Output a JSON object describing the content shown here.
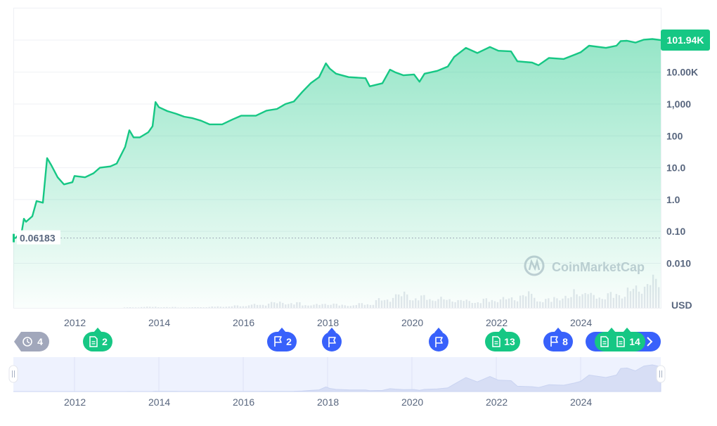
{
  "chart_data": {
    "type": "area",
    "scale": "log",
    "currency_label": "USD",
    "last_price_label": "101.94K",
    "start_price_label": "0.06183",
    "watermark": "CoinMarketCap",
    "y_ticks": [
      "101.94K",
      "10.00K",
      "1,000",
      "100",
      "10.0",
      "1.0",
      "0.10",
      "0.010"
    ],
    "x_ticks": [
      "2012",
      "2014",
      "2016",
      "2018",
      "2020",
      "2022",
      "2024"
    ],
    "nav_x_ticks": [
      "2012",
      "2014",
      "2016",
      "2018",
      "2020",
      "2022",
      "2024"
    ],
    "xlim": [
      2010.55,
      2025.9
    ],
    "ylim": [
      0.001,
      300000
    ],
    "series": [
      {
        "x": [
          2010.55,
          2010.6,
          2010.75,
          2010.8,
          2010.85,
          2011.0,
          2011.1,
          2011.25,
          2011.3,
          2011.35,
          2011.45,
          2011.6,
          2011.75,
          2011.95,
          2012.0,
          2012.25,
          2012.45,
          2012.6,
          2012.85,
          2013.0,
          2013.2,
          2013.3,
          2013.4,
          2013.55,
          2013.75,
          2013.85,
          2013.92,
          2014.0,
          2014.2,
          2014.4,
          2014.6,
          2014.8,
          2015.0,
          2015.2,
          2015.5,
          2015.75,
          2015.95,
          2016.3,
          2016.55,
          2016.8,
          2017.0,
          2017.2,
          2017.4,
          2017.6,
          2017.8,
          2017.96,
          2018.05,
          2018.2,
          2018.5,
          2018.9,
          2019.0,
          2019.3,
          2019.48,
          2019.6,
          2019.8,
          2020.05,
          2020.18,
          2020.3,
          2020.6,
          2020.85,
          2021.0,
          2021.28,
          2021.55,
          2021.85,
          2022.05,
          2022.35,
          2022.5,
          2022.85,
          2023.0,
          2023.25,
          2023.6,
          2023.85,
          2024.0,
          2024.2,
          2024.6,
          2024.85,
          2024.95,
          2025.1,
          2025.3,
          2025.5,
          2025.7,
          2025.9
        ],
        "y": [
          0.0618,
          0.0618,
          0.1,
          0.25,
          0.2,
          0.3,
          0.9,
          0.8,
          4,
          20,
          12,
          5,
          3,
          3.5,
          5.5,
          5,
          6.7,
          10,
          11,
          13.5,
          45,
          150,
          90,
          90,
          130,
          200,
          1150,
          800,
          600,
          500,
          400,
          360,
          300,
          230,
          230,
          330,
          430,
          430,
          620,
          700,
          1000,
          1200,
          2400,
          4500,
          7000,
          19000,
          13000,
          9000,
          7000,
          6500,
          3600,
          4500,
          12000,
          10000,
          8000,
          8500,
          5000,
          9000,
          11000,
          15000,
          30000,
          58000,
          40000,
          62000,
          47000,
          45000,
          22000,
          20000,
          16500,
          28000,
          26000,
          35000,
          42000,
          68000,
          58000,
          68000,
          95000,
          97000,
          85000,
          105000,
          110000,
          101940
        ]
      }
    ],
    "volume_level": [
      0,
      0,
      0,
      0,
      0,
      0,
      0.02,
      0.04,
      0.03,
      0.02,
      0.03,
      0.05,
      0.08,
      0.12,
      0.2,
      0.18,
      0.12,
      0.15,
      0.1,
      0.15,
      0.3,
      0.5,
      0.4,
      0.35,
      0.3,
      0.25,
      0.3,
      0.35,
      0.5,
      0.3,
      0.4,
      0.6,
      0.45,
      0.5,
      0.7,
      1.0
    ],
    "events": [
      {
        "type": "history",
        "label": "4",
        "year": null
      },
      {
        "type": "doc",
        "label": "2",
        "year": 2012.5
      },
      {
        "type": "flag",
        "label": "2",
        "year": 2016.9
      },
      {
        "type": "flag",
        "label": "",
        "year": 2018.1
      },
      {
        "type": "flag",
        "label": "",
        "year": 2020.6
      },
      {
        "type": "doc",
        "label": "13",
        "year": 2022.1
      },
      {
        "type": "flag",
        "label": "8",
        "year": 2023.3
      },
      {
        "type": "doc",
        "label": "14",
        "year": 2025.1
      }
    ],
    "colors": {
      "line": "#16c784",
      "flag_badge": "#3861fb",
      "doc_badge": "#16c784",
      "history_badge": "#a1a7bb",
      "nav_fill": "#eef2fe"
    }
  }
}
